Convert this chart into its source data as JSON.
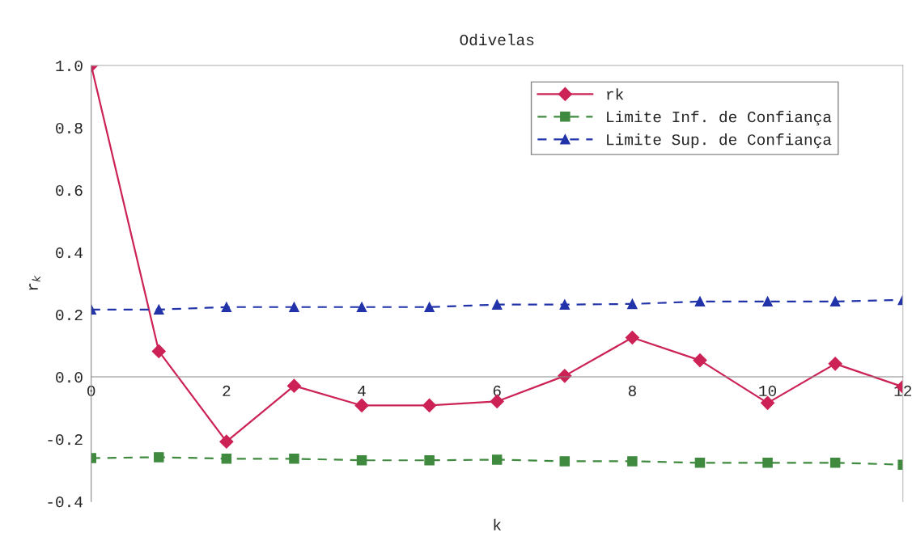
{
  "chart_data": {
    "type": "line",
    "title": "Odivelas",
    "xlabel": "k",
    "ylabel": "r$_{k}$",
    "x": [
      0,
      1,
      2,
      3,
      4,
      5,
      6,
      7,
      8,
      9,
      10,
      11,
      12
    ],
    "series": [
      {
        "name": "rk",
        "color": "#cc2256",
        "marker": "diamond",
        "line_style": "solid",
        "values": [
          1.0,
          0.082,
          -0.208,
          -0.029,
          -0.092,
          -0.092,
          -0.079,
          0.003,
          0.126,
          0.053,
          -0.084,
          0.042,
          -0.032
        ]
      },
      {
        "name": "Limite Inf. de Confiança",
        "color": "#3f8a3f",
        "marker": "square",
        "line_style": "dashed",
        "values": [
          -0.261,
          -0.258,
          -0.263,
          -0.263,
          -0.268,
          -0.268,
          -0.266,
          -0.271,
          -0.271,
          -0.276,
          -0.276,
          -0.276,
          -0.282
        ]
      },
      {
        "name": "Limite Sup. de Confiança",
        "color": "#2233aa",
        "marker": "triangle",
        "line_style": "dashed",
        "values": [
          0.216,
          0.216,
          0.224,
          0.224,
          0.224,
          0.224,
          0.232,
          0.232,
          0.234,
          0.242,
          0.242,
          0.242,
          0.247
        ]
      }
    ],
    "xlim": [
      0,
      12
    ],
    "xticks": [
      0,
      2,
      4,
      6,
      8,
      10,
      12
    ],
    "ylim": [
      -0.4,
      1.0
    ],
    "yticks": [
      {
        "value": -0.4,
        "label": "-0.4"
      },
      {
        "value": -0.2,
        "label": "-0.2"
      },
      {
        "value": 0.0,
        "label": "0.0"
      },
      {
        "value": 0.2,
        "label": "0.2"
      },
      {
        "value": 0.4,
        "label": "0.4"
      },
      {
        "value": 0.6,
        "label": "0.6"
      },
      {
        "value": 0.8,
        "label": "0.8"
      },
      {
        "value": 1.0,
        "label": "1.0"
      }
    ],
    "grid": false,
    "legend": "top right"
  }
}
